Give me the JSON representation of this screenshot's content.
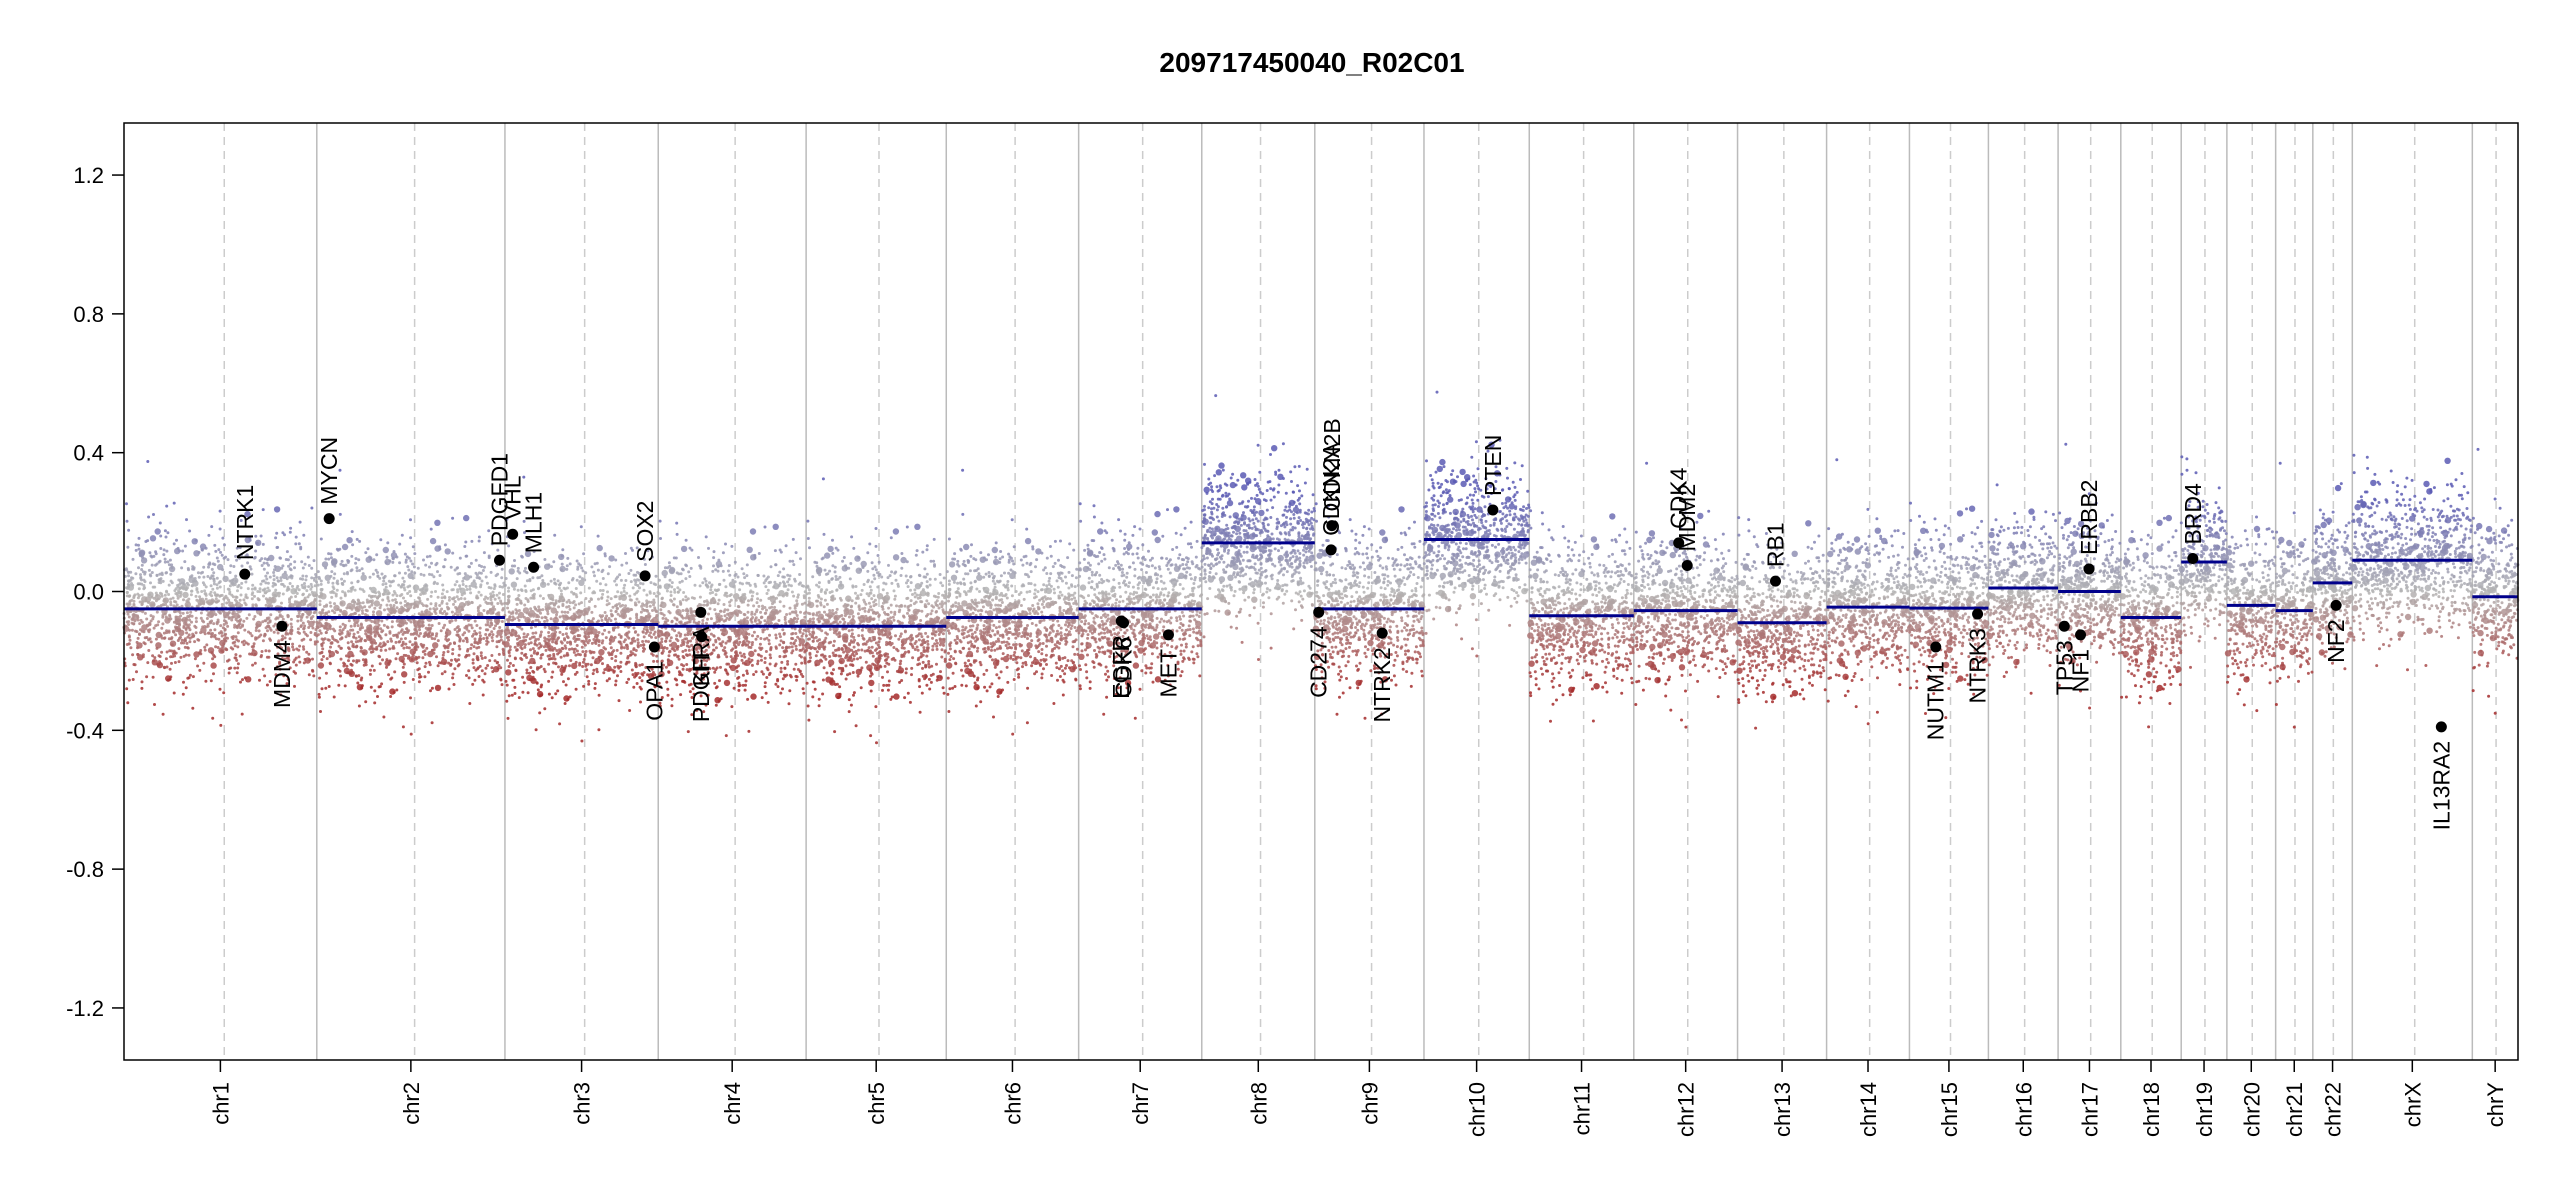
{
  "chart_data": {
    "type": "scatter",
    "title": "209717450040_R02C01",
    "xlabel": "",
    "ylabel": "",
    "ylim": [
      -1.35,
      1.35
    ],
    "y_ticks": [
      "1.2",
      "0.8",
      "0.4",
      "0.0",
      "-0.4",
      "-0.8",
      "-1.2"
    ],
    "chromosomes": [
      {
        "name": "chr1",
        "len": 249
      },
      {
        "name": "chr2",
        "len": 243
      },
      {
        "name": "chr3",
        "len": 198
      },
      {
        "name": "chr4",
        "len": 191
      },
      {
        "name": "chr5",
        "len": 181
      },
      {
        "name": "chr6",
        "len": 171
      },
      {
        "name": "chr7",
        "len": 159
      },
      {
        "name": "chr8",
        "len": 146
      },
      {
        "name": "chr9",
        "len": 141
      },
      {
        "name": "chr10",
        "len": 136
      },
      {
        "name": "chr11",
        "len": 135
      },
      {
        "name": "chr12",
        "len": 134
      },
      {
        "name": "chr13",
        "len": 115
      },
      {
        "name": "chr14",
        "len": 107
      },
      {
        "name": "chr15",
        "len": 102
      },
      {
        "name": "chr16",
        "len": 90
      },
      {
        "name": "chr17",
        "len": 81
      },
      {
        "name": "chr18",
        "len": 78
      },
      {
        "name": "chr19",
        "len": 59
      },
      {
        "name": "chr20",
        "len": 63
      },
      {
        "name": "chr21",
        "len": 48
      },
      {
        "name": "chr22",
        "len": 51
      },
      {
        "name": "chrX",
        "len": 155
      },
      {
        "name": "chrY",
        "len": 59
      }
    ],
    "segments": [
      {
        "chr": "chr1",
        "start": 0,
        "end": 249,
        "value": -0.05
      },
      {
        "chr": "chr2",
        "start": 0,
        "end": 243,
        "value": -0.075
      },
      {
        "chr": "chr3",
        "start": 0,
        "end": 198,
        "value": -0.095
      },
      {
        "chr": "chr4",
        "start": 0,
        "end": 191,
        "value": -0.1
      },
      {
        "chr": "chr5",
        "start": 0,
        "end": 181,
        "value": -0.1
      },
      {
        "chr": "chr6",
        "start": 0,
        "end": 171,
        "value": -0.075
      },
      {
        "chr": "chr7",
        "start": 0,
        "end": 159,
        "value": -0.05
      },
      {
        "chr": "chr8",
        "start": 0,
        "end": 146,
        "value": 0.14
      },
      {
        "chr": "chr9",
        "start": 0,
        "end": 141,
        "value": -0.05
      },
      {
        "chr": "chr10",
        "start": 0,
        "end": 136,
        "value": 0.15
      },
      {
        "chr": "chr11",
        "start": 0,
        "end": 135,
        "value": -0.07
      },
      {
        "chr": "chr12",
        "start": 0,
        "end": 134,
        "value": -0.055
      },
      {
        "chr": "chr13",
        "start": 0,
        "end": 115,
        "value": -0.09
      },
      {
        "chr": "chr14",
        "start": 0,
        "end": 107,
        "value": -0.045
      },
      {
        "chr": "chr15",
        "start": 0,
        "end": 102,
        "value": -0.048
      },
      {
        "chr": "chr16",
        "start": 0,
        "end": 90,
        "value": 0.01
      },
      {
        "chr": "chr17",
        "start": 0,
        "end": 81,
        "value": 0.0
      },
      {
        "chr": "chr18",
        "start": 0,
        "end": 78,
        "value": -0.075
      },
      {
        "chr": "chr19",
        "start": 0,
        "end": 59,
        "value": 0.085
      },
      {
        "chr": "chr20",
        "start": 0,
        "end": 63,
        "value": -0.04
      },
      {
        "chr": "chr21",
        "start": 0,
        "end": 48,
        "value": -0.055
      },
      {
        "chr": "chr22",
        "start": 0,
        "end": 51,
        "value": 0.025
      },
      {
        "chr": "chrX",
        "start": 0,
        "end": 155,
        "value": 0.09
      },
      {
        "chr": "chrY",
        "start": 0,
        "end": 59,
        "value": -0.015
      }
    ],
    "genes": [
      {
        "name": "NTRK1",
        "chr": "chr1",
        "pos": 156,
        "value": 0.05,
        "label_side": "above"
      },
      {
        "name": "MDM4",
        "chr": "chr1",
        "pos": 204,
        "value": -0.1,
        "label_side": "below"
      },
      {
        "name": "MYCN",
        "chr": "chr2",
        "pos": 16,
        "value": 0.21,
        "label_side": "above"
      },
      {
        "name": "PDGFD1",
        "chr": "chr2",
        "pos": 236,
        "value": 0.09,
        "label_side": "above"
      },
      {
        "name": "VHL",
        "chr": "chr3",
        "pos": 10,
        "value": 0.165,
        "label_side": "above"
      },
      {
        "name": "MLH1",
        "chr": "chr3",
        "pos": 37,
        "value": 0.07,
        "label_side": "above"
      },
      {
        "name": "SOX2",
        "chr": "chr3",
        "pos": 181,
        "value": 0.045,
        "label_side": "above"
      },
      {
        "name": "OPA1",
        "chr": "chr3",
        "pos": 193,
        "value": -0.16,
        "label_side": "below"
      },
      {
        "name": "PDGFRA",
        "chr": "chr4",
        "pos": 55,
        "value": -0.06,
        "label_side": "below"
      },
      {
        "name": "KIT",
        "chr": "chr4",
        "pos": 56,
        "value": -0.13,
        "label_side": "below"
      },
      {
        "name": "EGFR",
        "chr": "chr7",
        "pos": 55,
        "value": -0.085,
        "label_side": "below"
      },
      {
        "name": "CDK6",
        "chr": "chr7",
        "pos": 58,
        "value": -0.09,
        "label_side": "below"
      },
      {
        "name": "MET",
        "chr": "chr7",
        "pos": 116,
        "value": -0.125,
        "label_side": "below"
      },
      {
        "name": "CD274",
        "chr": "chr9",
        "pos": 5,
        "value": -0.06,
        "label_side": "below"
      },
      {
        "name": "CDKN2A",
        "chr": "chr9",
        "pos": 21,
        "value": 0.12,
        "label_side": "above"
      },
      {
        "name": "CDKN2B",
        "chr": "chr9",
        "pos": 22,
        "value": 0.19,
        "label_side": "above"
      },
      {
        "name": "NTRK2",
        "chr": "chr9",
        "pos": 87,
        "value": -0.12,
        "label_side": "below"
      },
      {
        "name": "PTEN",
        "chr": "chr10",
        "pos": 89,
        "value": 0.235,
        "label_side": "above"
      },
      {
        "name": "CDK4",
        "chr": "chr12",
        "pos": 58,
        "value": 0.14,
        "label_side": "above"
      },
      {
        "name": "MDM2",
        "chr": "chr12",
        "pos": 69,
        "value": 0.075,
        "label_side": "above"
      },
      {
        "name": "RB1",
        "chr": "chr13",
        "pos": 49,
        "value": 0.03,
        "label_side": "above"
      },
      {
        "name": "NUTM1",
        "chr": "chr15",
        "pos": 34,
        "value": -0.16,
        "label_side": "below"
      },
      {
        "name": "NTRK3",
        "chr": "chr15",
        "pos": 88,
        "value": -0.065,
        "label_side": "below"
      },
      {
        "name": "TP53",
        "chr": "chr17",
        "pos": 8,
        "value": -0.1,
        "label_side": "below"
      },
      {
        "name": "NF1",
        "chr": "chr17",
        "pos": 29,
        "value": -0.125,
        "label_side": "below"
      },
      {
        "name": "ERBB2",
        "chr": "chr17",
        "pos": 40,
        "value": 0.065,
        "label_side": "above"
      },
      {
        "name": "BRD4",
        "chr": "chr19",
        "pos": 15,
        "value": 0.095,
        "label_side": "above"
      },
      {
        "name": "NF2",
        "chr": "chr22",
        "pos": 30,
        "value": -0.04,
        "label_side": "below"
      },
      {
        "name": "IL13RA2",
        "chr": "chrX",
        "pos": 115,
        "value": -0.39,
        "label_side": "below"
      }
    ],
    "colors": {
      "segment": "#00008b",
      "gene_point": "#000000",
      "gain": "#5a5ab4",
      "loss": "#a52a2a",
      "neutral": "#b4b4b4",
      "chrom_boundary": "#bbbbbb",
      "centromere": "#cccccc"
    }
  }
}
